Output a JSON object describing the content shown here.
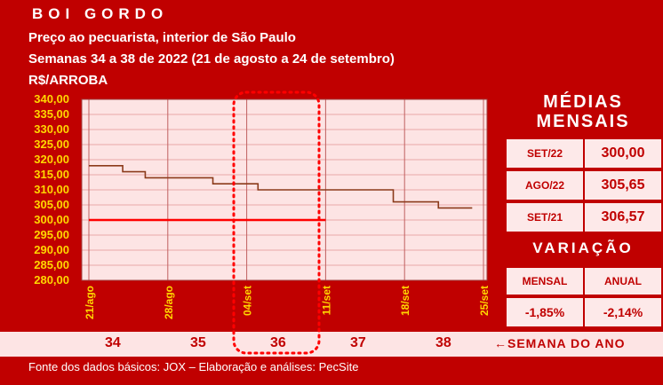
{
  "header": {
    "title": "BOI GORDO",
    "line1": "Preço ao pecuarista, interior de São Paulo",
    "line2": "Semanas 34 a 38 de 2022 (21 de agosto a 24 de setembro)",
    "line3": "R$/ARROBA"
  },
  "medias": {
    "title_line1": "MÉDIAS",
    "title_line2": "MENSAIS",
    "rows": [
      {
        "label": "SET/22",
        "value": "300,00"
      },
      {
        "label": "AGO/22",
        "value": "305,65"
      },
      {
        "label": "SET/21",
        "value": "306,57"
      }
    ]
  },
  "variacao": {
    "title": "VARIAÇÃO",
    "mensal_label": "MENSAL",
    "anual_label": "ANUAL",
    "mensal_value": "-1,85%",
    "anual_value": "-2,14%"
  },
  "weeks": {
    "numbers": [
      "34",
      "35",
      "36",
      "37",
      "38"
    ],
    "label": "SEMANA DO ANO",
    "arrow_icon": "left-arrow-icon"
  },
  "footer": "Fonte dos dados básicos: JOX – Elaboração e análises: PecSite",
  "colors": {
    "brand_red": "#c00000",
    "price_line": "#8b3a1a",
    "average_line": "#ff0000",
    "highlight_dots": "#ff0000",
    "tick_label": "#ffd700"
  },
  "chart_data": {
    "type": "line",
    "title": "BOI GORDO",
    "ylabel": "R$/ARROBA",
    "ylim": [
      280,
      340
    ],
    "yticks": [
      "340,00",
      "335,00",
      "330,00",
      "325,00",
      "320,00",
      "315,00",
      "310,00",
      "305,00",
      "300,00",
      "295,00",
      "290,00",
      "285,00",
      "280,00"
    ],
    "xticks": [
      "21/ago",
      "28/ago",
      "04/set",
      "11/set",
      "18/set",
      "25/set"
    ],
    "highlighted_week": "36",
    "series": [
      {
        "name": "",
        "x": [
          "21/ago",
          "22/ago",
          "23/ago",
          "24/ago",
          "25/ago",
          "26/ago",
          "27/ago",
          "28/ago",
          "29/ago",
          "30/ago",
          "31/ago",
          "01/set",
          "02/set",
          "03/set",
          "04/set",
          "05/set",
          "06/set",
          "07/set",
          "08/set",
          "09/set",
          "10/set",
          "11/set",
          "12/set",
          "13/set",
          "14/set",
          "15/set",
          "16/set",
          "17/set",
          "18/set",
          "19/set",
          "20/set",
          "21/set",
          "22/set",
          "23/set",
          "24/set"
        ],
        "values": [
          318,
          318,
          318,
          316,
          316,
          314,
          314,
          314,
          314,
          314,
          314,
          312,
          312,
          312,
          312,
          310,
          310,
          310,
          310,
          310,
          310,
          310,
          310,
          310,
          310,
          310,
          310,
          306,
          306,
          306,
          306,
          304,
          304,
          304,
          304
        ]
      },
      {
        "name": "SET/22",
        "x": [
          "21/ago",
          "11/set"
        ],
        "values": [
          300,
          300
        ]
      }
    ]
  }
}
